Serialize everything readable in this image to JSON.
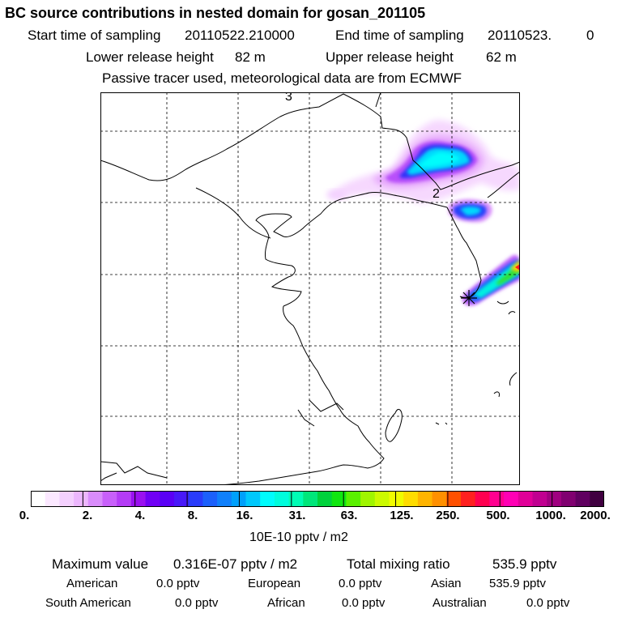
{
  "header": {
    "title": "BC  source contributions in nested domain for gosan_201105",
    "start_label": "Start time of sampling",
    "start_value": "20110522.210000",
    "end_label": "End time of sampling",
    "end_value": "20110523.",
    "end_tail": "0",
    "lower_label": "Lower release height",
    "lower_value": "82 m",
    "upper_label": "Upper release height",
    "upper_value": "62 m",
    "note": "Passive tracer used, meteorological data are from ECMWF"
  },
  "map": {
    "grid_labels": [
      "3",
      "2"
    ],
    "source_marker": "star-cross-icon",
    "coastline_color": "#000000",
    "grid_style": "dashed"
  },
  "colorbar": {
    "ticks": [
      "0.",
      "2.",
      "4.",
      "8.",
      "16.",
      "31.",
      "63.",
      "125.",
      "250.",
      "500.",
      "1000.",
      "2000."
    ],
    "colors": [
      "#ffffff",
      "#fbe8ff",
      "#f4d0fe",
      "#ecb6fd",
      "#d98cfb",
      "#c860fa",
      "#b43cf6",
      "#9a10f0",
      "#7000f5",
      "#5a00f5",
      "#4818f8",
      "#2a3cfa",
      "#1c60fb",
      "#1080fb",
      "#00a0fb",
      "#00c8fc",
      "#00fcfc",
      "#00fcdc",
      "#00fcb4",
      "#00e67a",
      "#00d23c",
      "#10e610",
      "#5af000",
      "#a0f500",
      "#ccfa00",
      "#f0fc00",
      "#ffdc00",
      "#ffb400",
      "#ff9000",
      "#ff5000",
      "#ff2020",
      "#ff0050",
      "#ff0090",
      "#ff00b4",
      "#e00098",
      "#c00090",
      "#a00080",
      "#800070",
      "#600060",
      "#400040"
    ],
    "units": "10E-10 pptv / m2"
  },
  "summary": {
    "max_label": "Maximum value",
    "max_value": "0.316E-07 pptv / m2",
    "total_label": "Total mixing ratio",
    "total_value": "535.9 pptv",
    "regions": [
      {
        "name": "American",
        "value": "0.0 pptv"
      },
      {
        "name": "European",
        "value": "0.0 pptv"
      },
      {
        "name": "Asian",
        "value": "535.9 pptv"
      },
      {
        "name": "South American",
        "value": "0.0 pptv"
      },
      {
        "name": "African",
        "value": "0.0 pptv"
      },
      {
        "name": "Australian",
        "value": "0.0 pptv"
      }
    ]
  }
}
